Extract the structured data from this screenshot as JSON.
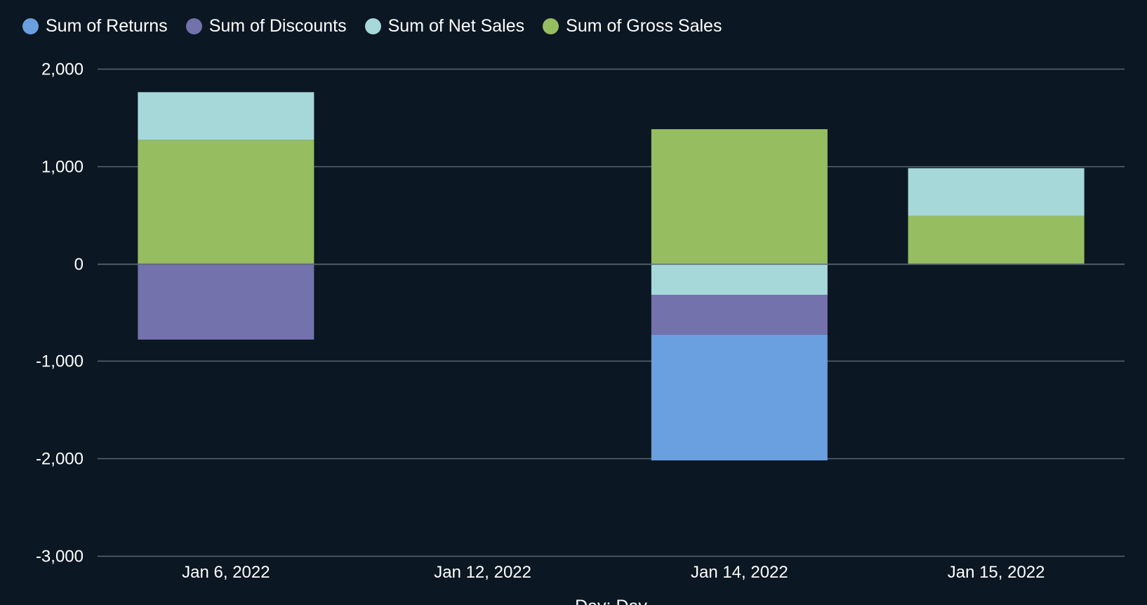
{
  "chart_data": {
    "type": "bar",
    "stacked": true,
    "xlabel": "Day: Day",
    "ylabel": "",
    "ylim": [
      -3000,
      2000
    ],
    "yticks": [
      2000,
      1000,
      0,
      -1000,
      -2000,
      -3000
    ],
    "ytick_labels": [
      "2,000",
      "1,000",
      "0",
      "-1,000",
      "-2,000",
      "-3,000"
    ],
    "categories": [
      "Jan 6, 2022",
      "Jan 12, 2022",
      "Jan 14, 2022",
      "Jan 15, 2022"
    ],
    "grid": true,
    "legend_position": "top-left",
    "series": [
      {
        "name": "Sum of Returns",
        "color": "#6a9fe0",
        "values": [
          0,
          0,
          -1290,
          0
        ]
      },
      {
        "name": "Sum of Discounts",
        "color": "#7372ac",
        "values": [
          -780,
          0,
          -410,
          0
        ]
      },
      {
        "name": "Sum of Net Sales",
        "color": "#a6d8da",
        "values": [
          490,
          0,
          -320,
          490
        ]
      },
      {
        "name": "Sum of Gross Sales",
        "color": "#96bd60",
        "values": [
          1270,
          0,
          1380,
          490
        ]
      }
    ]
  },
  "colors": {
    "background": "#0b1722",
    "gridline": "#5b6670",
    "text": "#ffffff"
  }
}
